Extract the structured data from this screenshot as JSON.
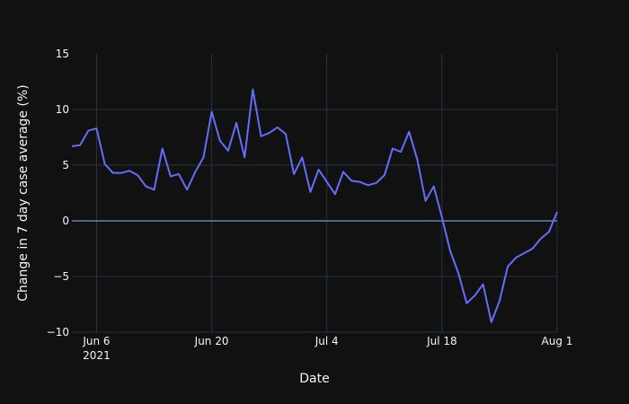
{
  "chart_data": {
    "type": "line",
    "xlabel": "Date",
    "ylabel": "Change in 7 day case average (%)",
    "x_range": [
      "2021-06-03",
      "2021-08-01"
    ],
    "ylim": [
      -10,
      15
    ],
    "grid": true,
    "x_ticks": [
      {
        "date": "2021-06-06",
        "label": "Jun 6",
        "sublabel": "2021"
      },
      {
        "date": "2021-06-20",
        "label": "Jun 20",
        "sublabel": ""
      },
      {
        "date": "2021-07-04",
        "label": "Jul 4",
        "sublabel": ""
      },
      {
        "date": "2021-07-18",
        "label": "Jul 18",
        "sublabel": ""
      },
      {
        "date": "2021-08-01",
        "label": "Aug 1",
        "sublabel": ""
      }
    ],
    "y_ticks": [
      {
        "value": 15,
        "label": "15"
      },
      {
        "value": 10,
        "label": "10"
      },
      {
        "value": 5,
        "label": "5"
      },
      {
        "value": 0,
        "label": "0"
      },
      {
        "value": -5,
        "label": "−5"
      },
      {
        "value": -10,
        "label": "−10"
      }
    ],
    "line_color": "#636efa",
    "series": [
      {
        "x": [
          "2021-06-03",
          "2021-06-04",
          "2021-06-05",
          "2021-06-06",
          "2021-06-07",
          "2021-06-08",
          "2021-06-09",
          "2021-06-10",
          "2021-06-11",
          "2021-06-12",
          "2021-06-13",
          "2021-06-14",
          "2021-06-15",
          "2021-06-16",
          "2021-06-17",
          "2021-06-18",
          "2021-06-19",
          "2021-06-20",
          "2021-06-21",
          "2021-06-22",
          "2021-06-23",
          "2021-06-24",
          "2021-06-25",
          "2021-06-26",
          "2021-06-27",
          "2021-06-28",
          "2021-06-29",
          "2021-06-30",
          "2021-07-01",
          "2021-07-02",
          "2021-07-03",
          "2021-07-04",
          "2021-07-05",
          "2021-07-06",
          "2021-07-07",
          "2021-07-08",
          "2021-07-09",
          "2021-07-10",
          "2021-07-11",
          "2021-07-12",
          "2021-07-13",
          "2021-07-14",
          "2021-07-15",
          "2021-07-16",
          "2021-07-17",
          "2021-07-18",
          "2021-07-19",
          "2021-07-20",
          "2021-07-21",
          "2021-07-22",
          "2021-07-23",
          "2021-07-24",
          "2021-07-25",
          "2021-07-26",
          "2021-07-27",
          "2021-07-28",
          "2021-07-29",
          "2021-07-30",
          "2021-07-31",
          "2021-08-01"
        ],
        "y": [
          6.7,
          6.8,
          8.1,
          8.3,
          5.1,
          4.3,
          4.3,
          4.5,
          4.1,
          3.1,
          2.8,
          6.5,
          4.0,
          4.2,
          2.8,
          4.4,
          5.7,
          9.8,
          7.2,
          6.3,
          8.8,
          5.7,
          11.8,
          7.6,
          7.9,
          8.4,
          7.8,
          4.2,
          5.7,
          2.6,
          4.6,
          3.5,
          2.4,
          4.4,
          3.6,
          3.5,
          3.2,
          3.4,
          4.1,
          6.5,
          6.2,
          8.0,
          5.5,
          1.8,
          3.1,
          0.3,
          -2.7,
          -4.7,
          -7.4,
          -6.7,
          -5.7,
          -9.1,
          -7.2,
          -4.1,
          -3.3,
          -2.9,
          -2.5,
          -1.6,
          -1.0,
          0.8
        ]
      }
    ]
  }
}
